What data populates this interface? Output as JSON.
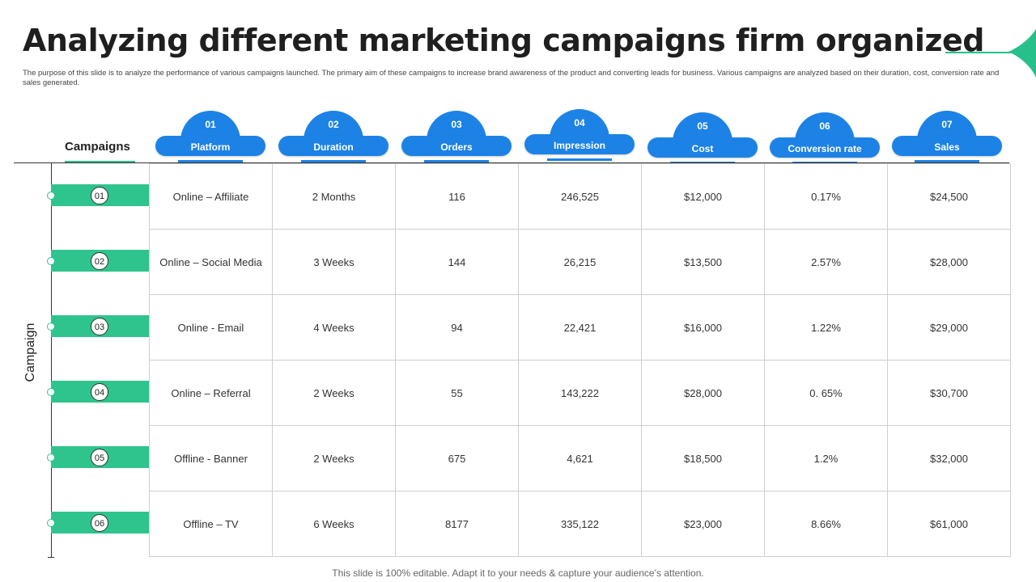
{
  "title": "Analyzing different marketing campaigns firm organized",
  "subtitle": "The purpose of this slide is to analyze the performance of various campaigns launched. The primary aim of these campaigns to increase brand awareness of the product and converting leads for business. Various campaigns are analyzed based on their duration, cost, conversion rate and sales generated.",
  "row_header": "Campaigns",
  "axis_label": "Campaign",
  "columns": [
    {
      "num": "01",
      "label": "Platform"
    },
    {
      "num": "02",
      "label": "Duration"
    },
    {
      "num": "03",
      "label": "Orders"
    },
    {
      "num": "04",
      "label": "Impression"
    },
    {
      "num": "05",
      "label": "Cost"
    },
    {
      "num": "06",
      "label": "Conversion rate"
    },
    {
      "num": "07",
      "label": "Sales"
    }
  ],
  "rows": [
    {
      "num": "01",
      "cells": [
        "Online – Affiliate",
        "2 Months",
        "116",
        "246,525",
        "$12,000",
        "0.17%",
        "$24,500"
      ]
    },
    {
      "num": "02",
      "cells": [
        "Online – Social Media",
        "3 Weeks",
        "144",
        "26,215",
        "$13,500",
        "2.57%",
        "$28,000"
      ]
    },
    {
      "num": "03",
      "cells": [
        "Online - Email",
        "4 Weeks",
        "94",
        "22,421",
        "$16,000",
        "1.22%",
        "$29,000"
      ]
    },
    {
      "num": "04",
      "cells": [
        "Online – Referral",
        "2 Weeks",
        "55",
        "143,222",
        "$28,000",
        "0. 65%",
        "$30,700"
      ]
    },
    {
      "num": "05",
      "cells": [
        "Offline - Banner",
        "2 Weeks",
        "675",
        "4,621",
        "$18,500",
        "1.2%",
        "$32,000"
      ]
    },
    {
      "num": "06",
      "cells": [
        "Offline – TV",
        "6 Weeks",
        "8177",
        "335,122",
        "$23,000",
        "8.66%",
        "$61,000"
      ]
    }
  ],
  "footer": "This slide is 100% editable. Adapt it to your needs & capture your audience’s attention.",
  "colors": {
    "blue": "#1d82e5",
    "green": "#2fc48d"
  }
}
